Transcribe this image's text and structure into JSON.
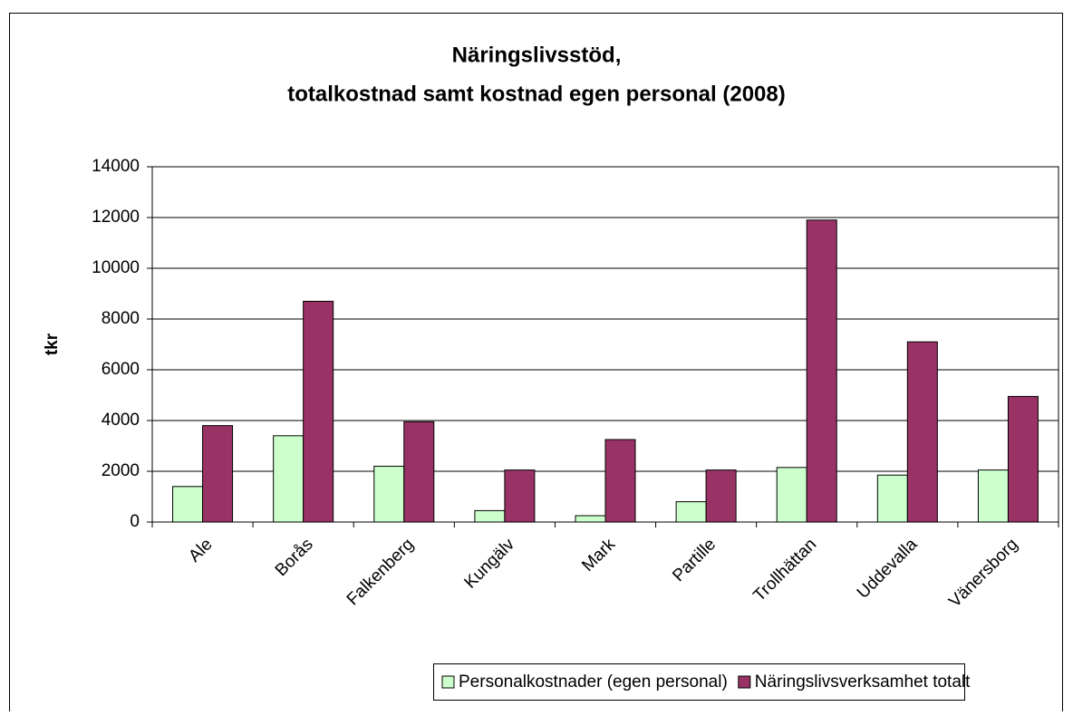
{
  "chart_data": {
    "type": "bar",
    "title": [
      "Näringslivsstöd,",
      "totalkostnad samt kostnad egen personal (2008)"
    ],
    "y_label": "tkr",
    "categories": [
      "Ale",
      "Borås",
      "Falkenberg",
      "Kungälv",
      "Mark",
      "Partille",
      "Trollhättan",
      "Uddevalla",
      "Vänersborg"
    ],
    "series": [
      {
        "name": "Personalkostnader (egen personal)",
        "color": "#ccffcc",
        "values": [
          1400,
          3400,
          2200,
          450,
          250,
          800,
          2150,
          1850,
          2050
        ]
      },
      {
        "name": "Näringslivsverksamhet totalt",
        "color": "#993366",
        "values": [
          3800,
          8700,
          3950,
          2050,
          3250,
          2050,
          11900,
          7100,
          4950
        ]
      }
    ],
    "ylim": [
      0,
      14000
    ],
    "yticks": [
      0,
      2000,
      4000,
      6000,
      8000,
      10000,
      12000,
      14000
    ],
    "grid": true,
    "legend": "bottom"
  }
}
